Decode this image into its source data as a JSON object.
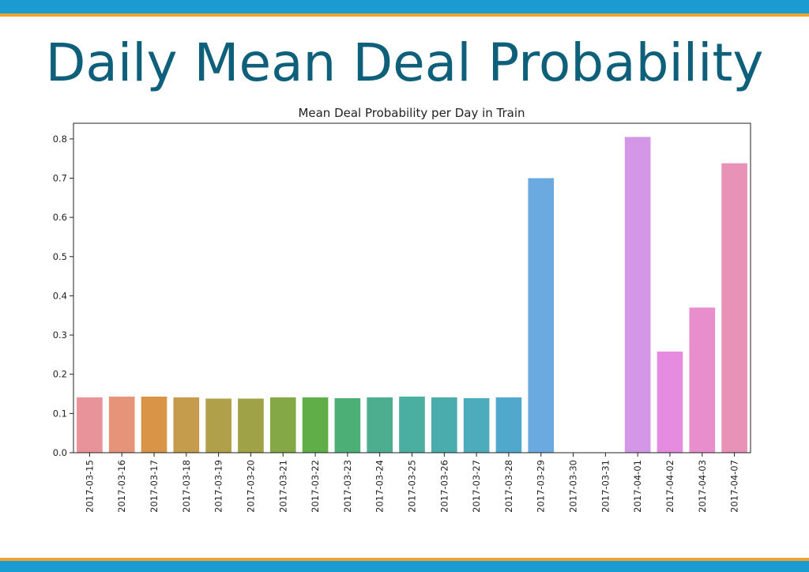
{
  "slide": {
    "title": "Daily Mean Deal Probability"
  },
  "colors": {
    "title": "#0d5f7a",
    "band_blue": "#1a9bd1",
    "band_orange": "#f0a330"
  },
  "chart_data": {
    "type": "bar",
    "title": "Mean Deal Probability per Day in Train",
    "xlabel": "",
    "ylabel": "",
    "ylim": [
      0,
      0.84
    ],
    "yticks": [
      "0.0",
      "0.1",
      "0.2",
      "0.3",
      "0.4",
      "0.5",
      "0.6",
      "0.7",
      "0.8"
    ],
    "grid": false,
    "categories": [
      "2017-03-15",
      "2017-03-16",
      "2017-03-17",
      "2017-03-18",
      "2017-03-19",
      "2017-03-20",
      "2017-03-21",
      "2017-03-22",
      "2017-03-23",
      "2017-03-24",
      "2017-03-25",
      "2017-03-26",
      "2017-03-27",
      "2017-03-28",
      "2017-03-29",
      "2017-03-30",
      "2017-03-31",
      "2017-04-01",
      "2017-04-02",
      "2017-04-03",
      "2017-04-07"
    ],
    "values": [
      0.141,
      0.143,
      0.143,
      0.141,
      0.138,
      0.138,
      0.141,
      0.141,
      0.139,
      0.141,
      0.143,
      0.141,
      0.139,
      0.141,
      0.7,
      0.0,
      0.0,
      0.805,
      0.258,
      0.37,
      0.738
    ],
    "bar_colors": [
      "#e8929a",
      "#e5947a",
      "#d99448",
      "#c49c4c",
      "#b0a04a",
      "#9fa246",
      "#85a846",
      "#60ae48",
      "#4cb076",
      "#4cae8e",
      "#4aaea0",
      "#4aacac",
      "#4cacbc",
      "#50a8cc",
      "#6aaae0",
      "#9aa6e8",
      "#b69ae8",
      "#d496e6",
      "#e68ce0",
      "#e88ecc",
      "#e892b8"
    ]
  }
}
